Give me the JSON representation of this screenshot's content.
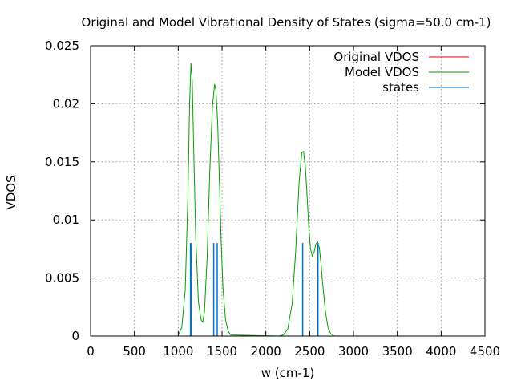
{
  "chart_data": {
    "type": "line",
    "title": "Original and Model Vibrational Density of States (sigma=50.0 cm-1)",
    "xlabel": "w (cm-1)",
    "ylabel": "VDOS",
    "xlim": [
      0,
      4500
    ],
    "ylim": [
      0,
      0.025
    ],
    "xticks": [
      0,
      500,
      1000,
      1500,
      2000,
      2500,
      3000,
      3500,
      4000,
      4500
    ],
    "xtick_labels": [
      "0",
      "500",
      "1000",
      "1500",
      "2000",
      "2500",
      "3000",
      "3500",
      "4000",
      "4500"
    ],
    "yticks": [
      0,
      0.005,
      0.01,
      0.015,
      0.02,
      0.025
    ],
    "ytick_labels": [
      "0",
      "0.005",
      "0.01",
      "0.015",
      "0.02",
      "0.025"
    ],
    "grid": true,
    "legend_position": "top-right",
    "series": [
      {
        "name": "Original VDOS",
        "kind": "line",
        "color": "#ff0000",
        "x": [],
        "y": []
      },
      {
        "name": "Model VDOS",
        "kind": "line",
        "color": "#00a000",
        "x": [
          1000,
          1040,
          1080,
          1110,
          1130,
          1145,
          1160,
          1180,
          1200,
          1230,
          1260,
          1280,
          1300,
          1330,
          1360,
          1390,
          1415,
          1430,
          1450,
          1470,
          1490,
          1510,
          1540,
          1570,
          1600,
          2150,
          2200,
          2250,
          2300,
          2340,
          2380,
          2410,
          2430,
          2450,
          2470,
          2490,
          2510,
          2530,
          2550,
          2570,
          2590,
          2610,
          2630,
          2650,
          2680,
          2710,
          2740,
          2780
        ],
        "y": [
          0.0001,
          0.0007,
          0.004,
          0.012,
          0.02,
          0.0235,
          0.022,
          0.015,
          0.0085,
          0.003,
          0.0014,
          0.0012,
          0.0021,
          0.0067,
          0.0142,
          0.0197,
          0.0217,
          0.0212,
          0.0185,
          0.0134,
          0.0082,
          0.0042,
          0.0014,
          0.0004,
          0.0001,
          0.0,
          0.0001,
          0.0006,
          0.0028,
          0.0072,
          0.0133,
          0.0158,
          0.0159,
          0.0146,
          0.0121,
          0.0094,
          0.0075,
          0.0069,
          0.0072,
          0.0079,
          0.0081,
          0.0076,
          0.0062,
          0.0044,
          0.0021,
          0.0007,
          0.0002,
          0.0
        ]
      },
      {
        "name": "states",
        "kind": "impulses",
        "color": "#0072d0",
        "x": [
          1140,
          1148,
          1405,
          1445,
          2420,
          2595
        ],
        "y": [
          0.008,
          0.008,
          0.008,
          0.008,
          0.008,
          0.008
        ]
      }
    ]
  }
}
